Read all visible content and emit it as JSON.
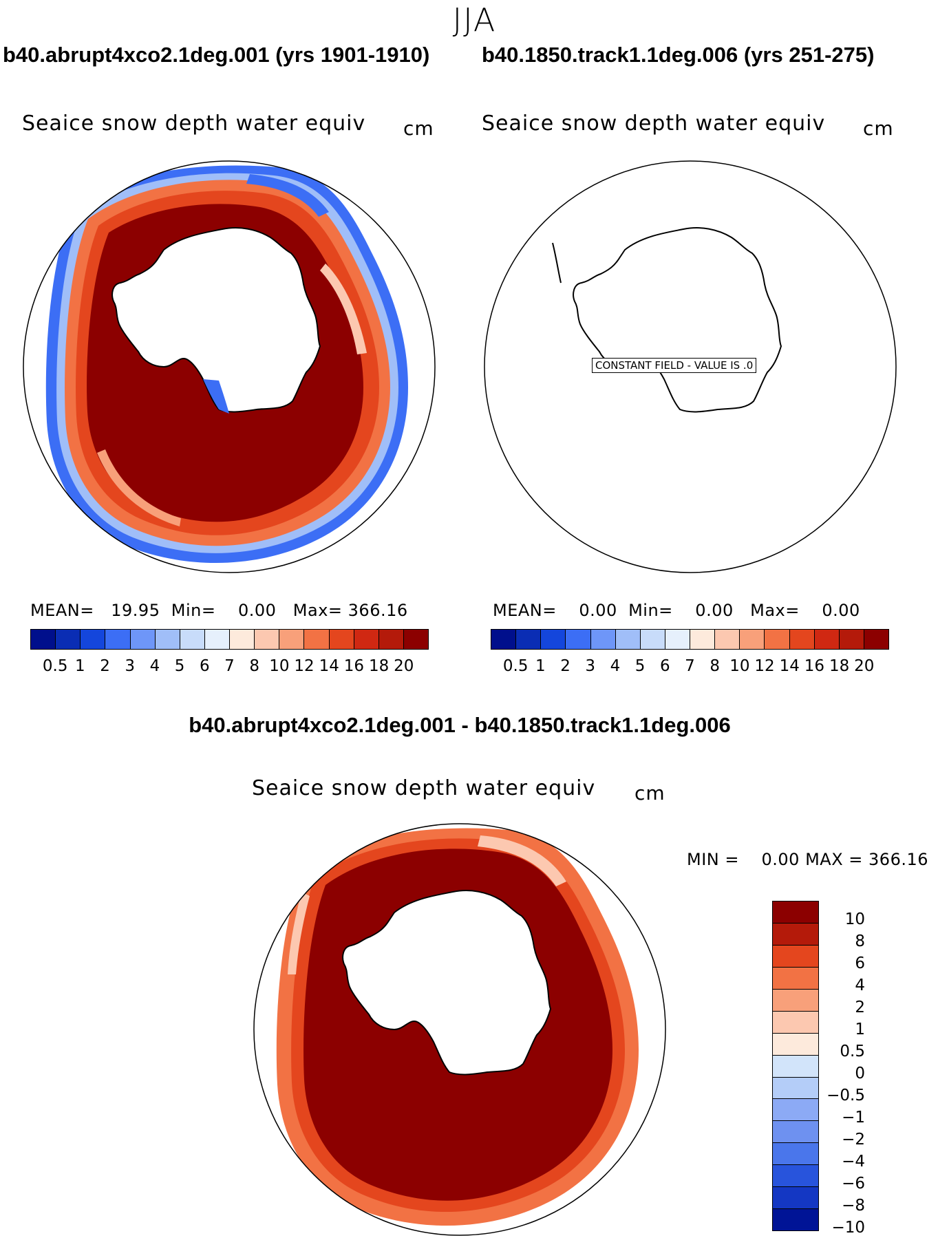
{
  "season": "JJA",
  "panels": {
    "left": {
      "case_title": "b40.abrupt4xco2.1deg.001 (yrs 1901-1910)",
      "variable": "Seaice snow depth water equiv",
      "units": "cm",
      "stats": {
        "mean_label": "MEAN=",
        "mean": "19.95",
        "min_label": "Min=",
        "min": "0.00",
        "max_label": "Max=",
        "max": "366.16"
      }
    },
    "right": {
      "case_title": "b40.1850.track1.1deg.006 (yrs 251-275)",
      "variable": "Seaice snow depth water equiv",
      "units": "cm",
      "constant_field": "CONSTANT FIELD - VALUE IS .0",
      "stats": {
        "mean_label": "MEAN=",
        "mean": "0.00",
        "min_label": "Min=",
        "min": "0.00",
        "max_label": "Max=",
        "max": "0.00"
      }
    },
    "diff": {
      "case_title": "b40.abrupt4xco2.1deg.001 - b40.1850.track1.1deg.006",
      "variable": "Seaice snow depth water equiv",
      "units": "cm",
      "stats": {
        "min_label": "MIN =",
        "min": "0.00",
        "max_label": "MAX =",
        "max": "366.16"
      }
    }
  },
  "colorbar_main": {
    "colors": [
      "#000f8c",
      "#0a2db4",
      "#1446dc",
      "#3c6ef5",
      "#6e96f8",
      "#a0bef8",
      "#c8dcfa",
      "#e6f0fc",
      "#fdeadc",
      "#fcc8b0",
      "#f8a07a",
      "#f27244",
      "#e4461e",
      "#d02812",
      "#b41a0a",
      "#8c0000"
    ],
    "labels": [
      "0.5",
      "1",
      "2",
      "3",
      "4",
      "5",
      "6",
      "7",
      "8",
      "10",
      "12",
      "14",
      "16",
      "18",
      "20"
    ]
  },
  "colorbar_diff": {
    "colors": [
      "#8c0000",
      "#b41a0a",
      "#e4461e",
      "#f27244",
      "#f8a07a",
      "#fcc8b0",
      "#fdeadc",
      "#d2e4fa",
      "#b4cdf8",
      "#8caaf5",
      "#6e91f0",
      "#4a76eb",
      "#2854dc",
      "#1437c3",
      "#001496"
    ],
    "labels": [
      "10",
      "8",
      "6",
      "4",
      "2",
      "1",
      "0.5",
      "0",
      "−0.5",
      "−1",
      "−2",
      "−4",
      "−6",
      "−8",
      "−10"
    ]
  }
}
